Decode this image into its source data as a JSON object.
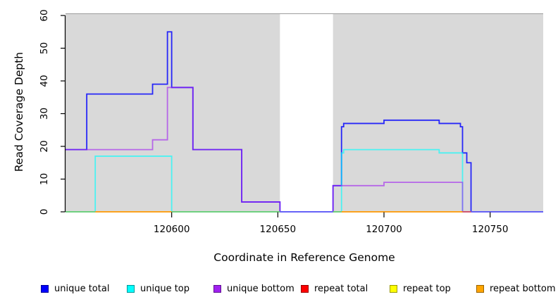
{
  "chart_data": {
    "type": "line",
    "subtype": "step-coverage",
    "title": "",
    "xlabel": "Coordinate in Reference Genome",
    "ylabel": "Read Coverage Depth",
    "xlim": [
      120550,
      120775
    ],
    "ylim": [
      0,
      60
    ],
    "x_ticks": [
      120600,
      120650,
      120700,
      120750
    ],
    "y_ticks": [
      0,
      10,
      20,
      30,
      40,
      50,
      60
    ],
    "grid": false,
    "legend_position": "bottom",
    "plot_background": "#ffffff",
    "region_fill": "#d9d9d9",
    "region_border": "#9c9c9c",
    "background_regions": [
      {
        "from": 120550,
        "to": 120651,
        "color": "#d9d9d9"
      },
      {
        "from": 120676,
        "to": 120775,
        "color": "#d9d9d9"
      }
    ],
    "series": [
      {
        "name": "unique total",
        "legend_color": "#0000ff",
        "line_color": "#0000ff",
        "opacity": 0.82,
        "steps": [
          [
            120550,
            19
          ],
          [
            120560,
            36
          ],
          [
            120591,
            39
          ],
          [
            120598,
            55
          ],
          [
            120600,
            38
          ],
          [
            120610,
            19
          ],
          [
            120633,
            3
          ],
          [
            120651,
            0
          ],
          [
            120676,
            8
          ],
          [
            120680,
            26
          ],
          [
            120681,
            27
          ],
          [
            120700,
            28
          ],
          [
            120726,
            27
          ],
          [
            120736,
            26
          ],
          [
            120737,
            18
          ],
          [
            120739,
            15
          ],
          [
            120741,
            0
          ]
        ]
      },
      {
        "name": "unique top",
        "legend_color": "#00ffff",
        "line_color": "#00ffff",
        "opacity": 0.65,
        "steps": [
          [
            120550,
            0
          ],
          [
            120564,
            17
          ],
          [
            120600,
            0
          ],
          [
            120680,
            18
          ],
          [
            120681,
            19
          ],
          [
            120726,
            18
          ],
          [
            120737,
            0
          ]
        ]
      },
      {
        "name": "unique bottom",
        "legend_color": "#a020f0",
        "line_color": "#a020f0",
        "opacity": 0.62,
        "steps": [
          [
            120550,
            19
          ],
          [
            120591,
            22
          ],
          [
            120598,
            38
          ],
          [
            120610,
            19
          ],
          [
            120633,
            3
          ],
          [
            120651,
            0
          ],
          [
            120676,
            8
          ],
          [
            120700,
            9
          ],
          [
            120737,
            0
          ]
        ]
      },
      {
        "name": "repeat total",
        "legend_color": "#ff0000",
        "line_color": "#d84f63",
        "opacity": 1,
        "steps": []
      },
      {
        "name": "repeat top",
        "legend_color": "#ffff00",
        "line_color": "#6ecb6e",
        "opacity": 1,
        "steps": []
      },
      {
        "name": "repeat bottom",
        "legend_color": "#ffa500",
        "line_color": "#ff9800",
        "opacity": 1,
        "steps": []
      }
    ],
    "baseline_segments": [
      {
        "series": "repeat top",
        "color": "#6ecb6e",
        "from": 120550,
        "to": 120564,
        "value": 0
      },
      {
        "series": "repeat bottom",
        "color": "#ff9800",
        "from": 120564,
        "to": 120600,
        "value": 0
      },
      {
        "series": "repeat top",
        "color": "#6ecb6e",
        "from": 120600,
        "to": 120651,
        "value": 0
      },
      {
        "series": "repeat top",
        "color": "#6ecb6e",
        "from": 120676,
        "to": 120680,
        "value": 0
      },
      {
        "series": "repeat bottom",
        "color": "#ff9800",
        "from": 120680,
        "to": 120737,
        "value": 0
      },
      {
        "series": "repeat total",
        "color": "#d84f63",
        "from": 120737,
        "to": 120741,
        "value": 0
      }
    ]
  },
  "legend": {
    "items": [
      {
        "label": "unique total",
        "color": "#0000ff"
      },
      {
        "label": "unique top",
        "color": "#00ffff"
      },
      {
        "label": "unique bottom",
        "color": "#a020f0"
      },
      {
        "label": "repeat total",
        "color": "#ff0000"
      },
      {
        "label": "repeat top",
        "color": "#ffff00"
      },
      {
        "label": "repeat bottom",
        "color": "#ffa500"
      }
    ]
  }
}
